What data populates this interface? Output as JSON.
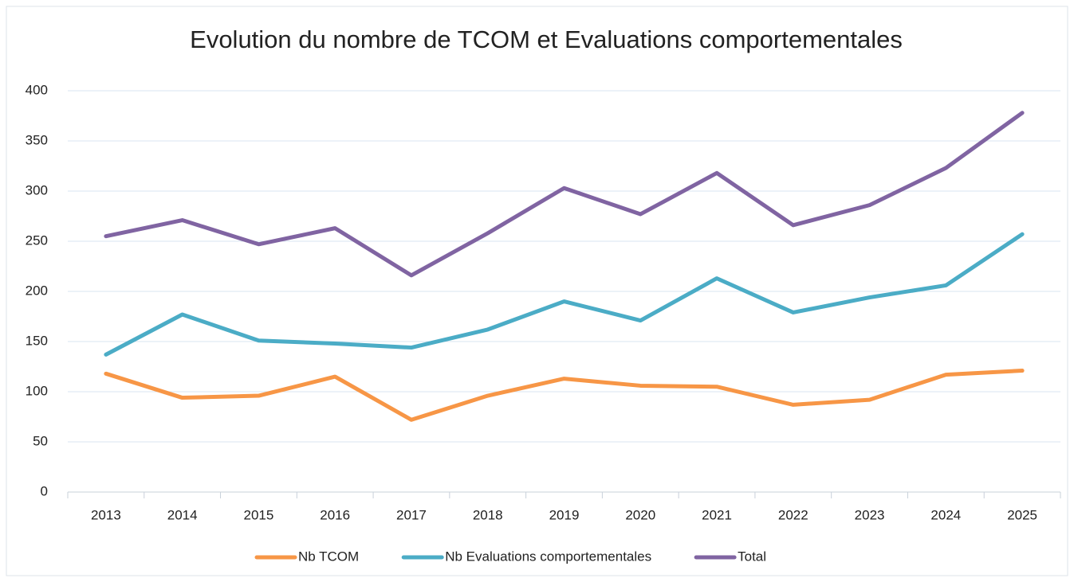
{
  "chart_data": {
    "type": "line",
    "title": "Evolution du nombre de TCOM et Evaluations comportementales",
    "categories": [
      "2013",
      "2014",
      "2015",
      "2016",
      "2017",
      "2018",
      "2019",
      "2020",
      "2021",
      "2022",
      "2023",
      "2024",
      "2025"
    ],
    "series": [
      {
        "name": "Nb TCOM",
        "color": "#f79646",
        "values": [
          118,
          94,
          96,
          115,
          72,
          96,
          113,
          106,
          105,
          87,
          92,
          117,
          121
        ]
      },
      {
        "name": "Nb Evaluations comportementales",
        "color": "#4bacc6",
        "values": [
          137,
          177,
          151,
          148,
          144,
          162,
          190,
          171,
          213,
          179,
          194,
          206,
          257
        ]
      },
      {
        "name": "Total",
        "color": "#8064a2",
        "values": [
          255,
          271,
          247,
          263,
          216,
          258,
          303,
          277,
          318,
          266,
          286,
          323,
          378
        ]
      }
    ],
    "ylim": [
      0,
      400
    ],
    "yticks": [
      0,
      50,
      100,
      150,
      200,
      250,
      300,
      350,
      400
    ],
    "grid": true,
    "legend": "bottom"
  }
}
